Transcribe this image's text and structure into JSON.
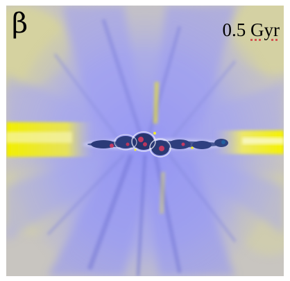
{
  "panel": {
    "label": "β",
    "time_value": "0.5",
    "time_unit": "Gyr"
  },
  "colors": {
    "background_gray": "#c9c6c1",
    "outflow_blue": "#9d9ff5",
    "hot_yellow": "#e8e21a",
    "disk_dark": "#2b3a78",
    "dense_red": "#c23a63",
    "spellcheck_red": "#d24a4a"
  }
}
